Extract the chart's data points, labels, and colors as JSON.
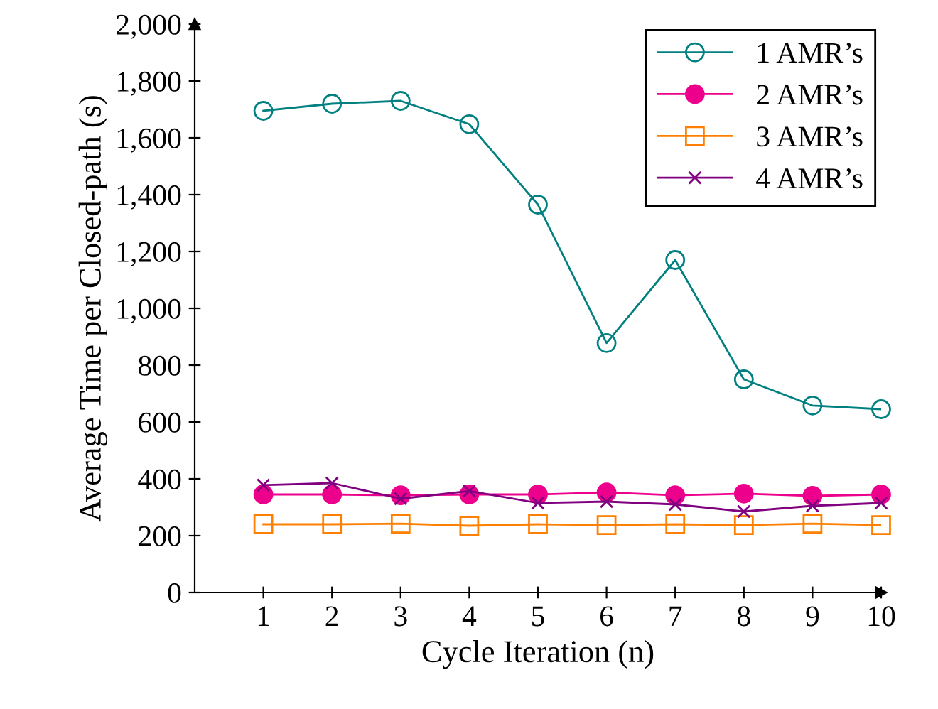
{
  "chart_data": {
    "type": "line",
    "xlabel": "Cycle Iteration (n)",
    "ylabel": "Average Time per Closed-path (s)",
    "x": [
      1,
      2,
      3,
      4,
      5,
      6,
      7,
      8,
      9,
      10
    ],
    "series": [
      {
        "name": "1 AMR’s",
        "color": "#008080",
        "marker": "circle",
        "values": [
          1695,
          1720,
          1730,
          1648,
          1365,
          878,
          1170,
          750,
          658,
          645
        ]
      },
      {
        "name": "2 AMR’s",
        "color": "#ec008c",
        "marker": "circle",
        "values": [
          345,
          345,
          342,
          345,
          345,
          352,
          342,
          348,
          340,
          345
        ]
      },
      {
        "name": "3 AMR’s",
        "color": "#ff8000",
        "marker": "square",
        "values": [
          240,
          240,
          242,
          235,
          240,
          237,
          240,
          237,
          242,
          237
        ]
      },
      {
        "name": "4 AMR’s",
        "color": "#800080",
        "marker": "cross",
        "values": [
          378,
          385,
          330,
          357,
          315,
          320,
          310,
          285,
          305,
          315
        ]
      }
    ],
    "xlim": [
      0,
      10
    ],
    "ylim": [
      0,
      2000
    ],
    "xticks": [
      1,
      2,
      3,
      4,
      5,
      6,
      7,
      8,
      9,
      10
    ],
    "yticks": [
      0,
      {
        "value": 200,
        "label": "200"
      },
      {
        "value": 400,
        "label": "400"
      },
      {
        "value": 600,
        "label": "600"
      },
      {
        "value": 800,
        "label": "800"
      },
      {
        "value": 1000,
        "label": "1,000"
      },
      {
        "value": 1200,
        "label": "1,200"
      },
      {
        "value": 1400,
        "label": "1,400"
      },
      {
        "value": 1600,
        "label": "1,600"
      },
      {
        "value": 1800,
        "label": "1,800"
      },
      {
        "value": 2000,
        "label": "2,000"
      }
    ],
    "grid": false,
    "legend": "top right"
  }
}
